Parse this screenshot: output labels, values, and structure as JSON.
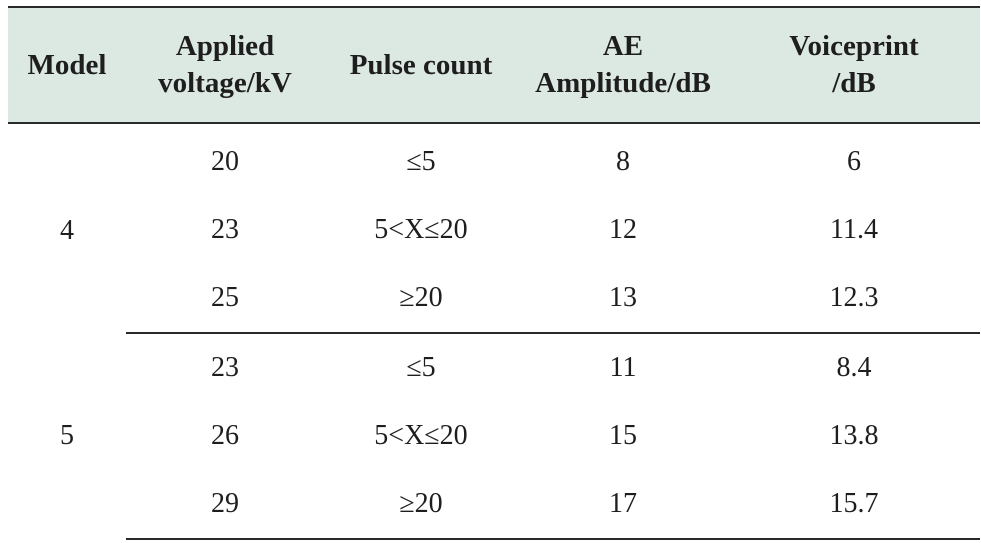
{
  "table": {
    "headers": [
      {
        "lines": [
          "Model"
        ]
      },
      {
        "lines": [
          "Applied",
          "voltage/kV"
        ]
      },
      {
        "lines": [
          "Pulse count"
        ]
      },
      {
        "lines": [
          "AE",
          "Amplitude/dB"
        ]
      },
      {
        "lines": [
          "Voiceprint",
          "/dB"
        ]
      }
    ],
    "groups": [
      {
        "model": "4",
        "rows": [
          {
            "voltage": "20",
            "pulse": "≤5",
            "ae": "8",
            "voiceprint": "6"
          },
          {
            "voltage": "23",
            "pulse": "5<X≤20",
            "ae": "12",
            "voiceprint": "11.4"
          },
          {
            "voltage": "25",
            "pulse": "≥20",
            "ae": "13",
            "voiceprint": "12.3"
          }
        ]
      },
      {
        "model": "5",
        "rows": [
          {
            "voltage": "23",
            "pulse": "≤5",
            "ae": "11",
            "voiceprint": "8.4"
          },
          {
            "voltage": "26",
            "pulse": "5<X≤20",
            "ae": "15",
            "voiceprint": "13.8"
          },
          {
            "voltage": "29",
            "pulse": "≥20",
            "ae": "17",
            "voiceprint": "15.7"
          }
        ]
      }
    ]
  },
  "colors": {
    "header_background": "#dce8e2",
    "rule": "#2a2a2a",
    "text": "#1e1e1e"
  }
}
